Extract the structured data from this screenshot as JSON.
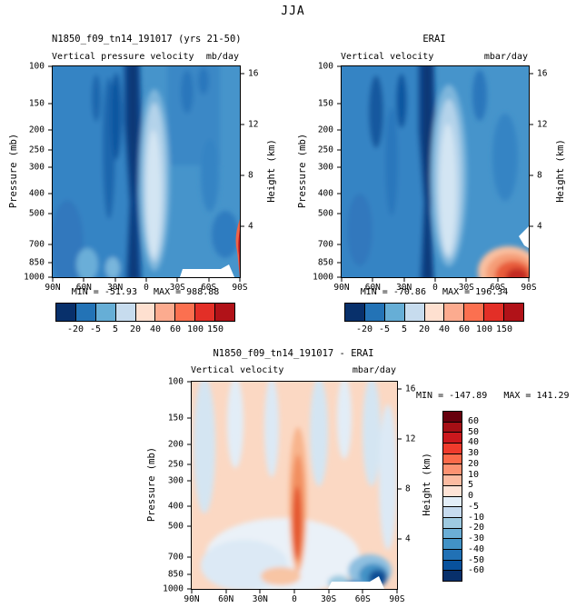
{
  "figure": {
    "title": "JJA"
  },
  "axes": {
    "pressure_label": "Pressure (mb)",
    "height_label": "Height (km)",
    "pressure_ticks": [
      "100",
      "150",
      "200",
      "250",
      "300",
      "400",
      "500",
      "700",
      "850",
      "1000"
    ],
    "height_ticks": [
      "16",
      "12",
      "8",
      "4"
    ],
    "lat_ticks": [
      "90N",
      "60N",
      "30N",
      "0",
      "30S",
      "60S",
      "90S"
    ]
  },
  "panels": {
    "model": {
      "title": "N1850_f09_tn14_191017 (yrs 21-50)",
      "variable": "Vertical pressure velocity",
      "units": "mb/day",
      "stats": "MIN = -51.93   MAX = 988.88"
    },
    "erai": {
      "title": "ERAI",
      "variable": "Vertical velocity",
      "units": "mbar/day",
      "stats": "MIN = -70.86   MAX = 196.34"
    },
    "diff": {
      "title": "N1850_f09_tn14_191017 - ERAI",
      "variable": "Vertical velocity",
      "units": "mbar/day",
      "stats": "MIN = -147.89   MAX = 141.29"
    }
  },
  "colorbar_h": {
    "labels": [
      "-20",
      "-5",
      "5",
      "20",
      "40",
      "60",
      "100",
      "150"
    ],
    "colors": [
      "#08306b",
      "#2373b6",
      "#66aed6",
      "#c7dcee",
      "#fee0d0",
      "#fcab8f",
      "#fb7050",
      "#e32f27",
      "#b11218"
    ]
  },
  "colorbar_v": {
    "labels": [
      "60",
      "50",
      "40",
      "30",
      "20",
      "10",
      "5",
      "0",
      "-5",
      "-10",
      "-20",
      "-30",
      "-40",
      "-50",
      "-60"
    ],
    "colors": [
      "#67000d",
      "#a50f15",
      "#cb181d",
      "#ef3b2c",
      "#fb6a4a",
      "#fc9272",
      "#fcbba1",
      "#fee3d6",
      "#e3eef8",
      "#c6dbef",
      "#9ecae1",
      "#6baed6",
      "#4292c6",
      "#2171b5",
      "#08519c",
      "#08306b"
    ]
  },
  "chart_data": [
    {
      "type": "heatmap",
      "panel": "top-left",
      "title": "N1850_f09_tn14_191017 (yrs 21-50)",
      "variable": "Vertical pressure velocity",
      "units": "mb/day",
      "x_ticks": [
        "90N",
        "60N",
        "30N",
        "0",
        "30S",
        "60S",
        "90S"
      ],
      "y_pressure_mb": [
        100,
        150,
        200,
        250,
        300,
        400,
        500,
        700,
        850,
        1000
      ],
      "y_height_km": [
        16,
        12,
        8,
        4
      ],
      "contour_levels": [
        -20,
        -5,
        5,
        20,
        40,
        60,
        100,
        150
      ],
      "min": -51.93,
      "max": 988.88,
      "legend_position": "bottom",
      "pattern": "mostly negative (blue) field; dark blue band near 0-10N through full depth; light blue ascent column just south of equator; small red maximum at far 90S near surface; white terrain mask 60S-90S at bottom"
    },
    {
      "type": "heatmap",
      "panel": "top-right",
      "title": "ERAI",
      "variable": "Vertical velocity",
      "units": "mbar/day",
      "x_ticks": [
        "90N",
        "60N",
        "30N",
        "0",
        "30S",
        "60S",
        "90S"
      ],
      "y_pressure_mb": [
        100,
        150,
        200,
        250,
        300,
        400,
        500,
        700,
        850,
        1000
      ],
      "y_height_km": [
        16,
        12,
        8,
        4
      ],
      "contour_levels": [
        -20,
        -5,
        5,
        20,
        40,
        60,
        100,
        150
      ],
      "min": -70.86,
      "max": 196.34,
      "legend_position": "bottom",
      "pattern": "blue field with dark band near equator; broad light blue column 0-20S; prominent orange-red maximum 60S-90S below 700 mb"
    },
    {
      "type": "heatmap",
      "panel": "bottom",
      "title": "N1850_f09_tn14_191017 - ERAI",
      "variable": "Vertical velocity",
      "units": "mbar/day",
      "x_ticks": [
        "90N",
        "60N",
        "30N",
        "0",
        "30S",
        "60S",
        "90S"
      ],
      "y_pressure_mb": [
        100,
        150,
        200,
        250,
        300,
        400,
        500,
        700,
        850,
        1000
      ],
      "y_height_km": [
        16,
        12,
        8,
        4
      ],
      "contour_levels": [
        -60,
        -50,
        -40,
        -30,
        -20,
        -10,
        -5,
        0,
        5,
        10,
        20,
        30,
        40,
        50,
        60
      ],
      "min": -147.89,
      "max": 141.29,
      "legend_position": "right",
      "pattern": "pale peach (weak positive) background with pale blue streaks aloft; orange positive column near equator mid-levels; dark blue negative patch 60S-90S near surface; white terrain mask bottom right"
    }
  ]
}
